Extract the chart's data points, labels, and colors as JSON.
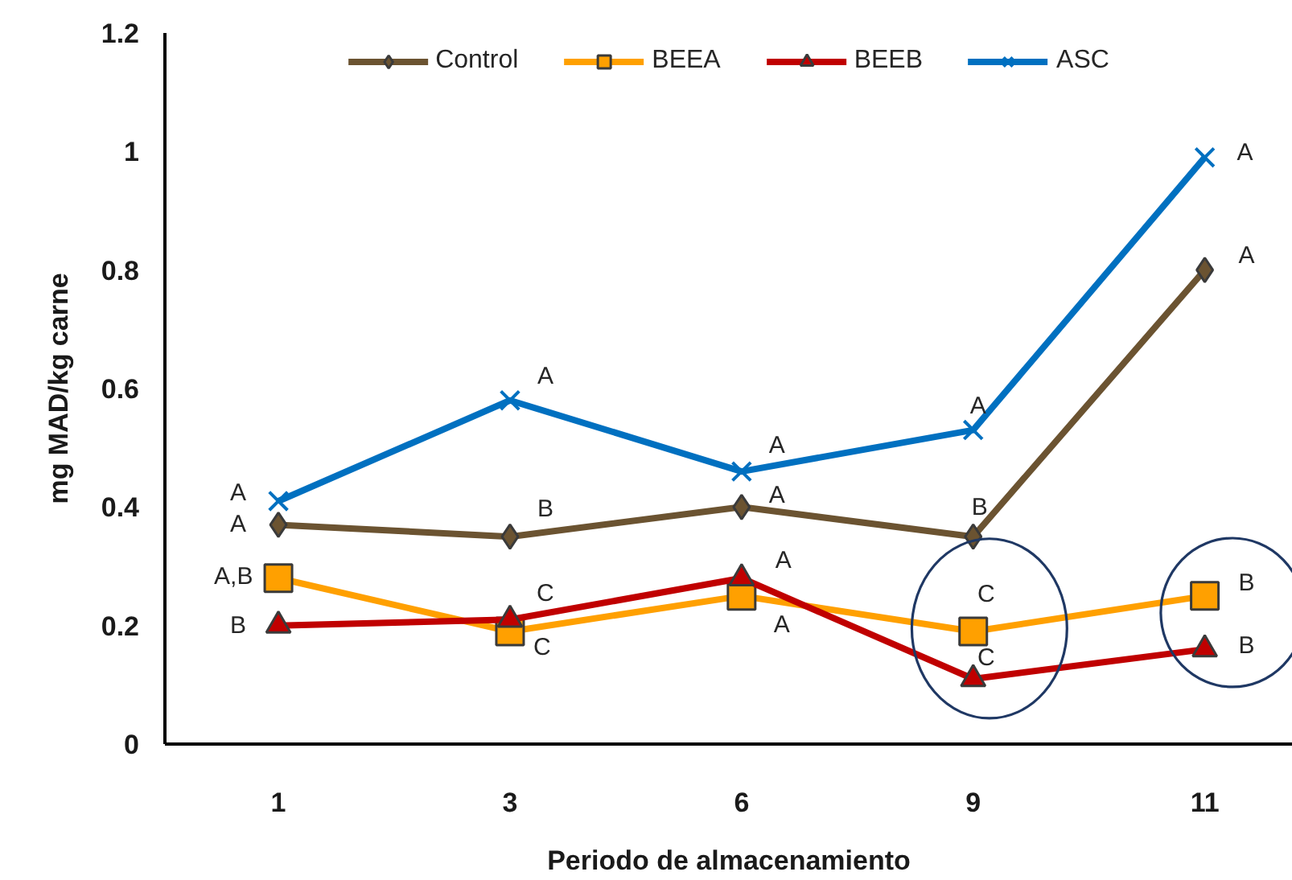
{
  "chart_data": {
    "type": "line",
    "xlabel": "Periodo de almacenamiento",
    "ylabel": "mg MAD/kg carne",
    "categories": [
      "1",
      "3",
      "6",
      "9",
      "11"
    ],
    "ylim": [
      0,
      1.2
    ],
    "yticks": [
      0,
      0.2,
      0.4,
      0.6,
      0.8,
      1,
      1.2
    ],
    "grid": false,
    "legend": "top",
    "line_style": "solid",
    "series": [
      {
        "name": "Control",
        "color": "#6b5331",
        "marker": "diamond",
        "values": [
          0.37,
          0.35,
          0.4,
          0.35,
          0.8
        ]
      },
      {
        "name": "BEEA",
        "color": "#ffa000",
        "marker": "square",
        "values": [
          0.28,
          0.19,
          0.25,
          0.19,
          0.25
        ]
      },
      {
        "name": "BEEB",
        "color": "#c00000",
        "marker": "triangle",
        "values": [
          0.2,
          0.21,
          0.28,
          0.11,
          0.16
        ]
      },
      {
        "name": "ASC",
        "color": "#0070c0",
        "marker": "cross",
        "values": [
          0.41,
          0.58,
          0.46,
          0.53,
          0.99
        ]
      }
    ],
    "annotations": [
      {
        "text": "A",
        "x": "1",
        "y": 0.37
      },
      {
        "text": "B",
        "x": "3",
        "y": 0.35
      },
      {
        "text": "A",
        "x": "6",
        "y": 0.4
      },
      {
        "text": "B",
        "x": "9",
        "y": 0.35
      },
      {
        "text": "A",
        "x": "11",
        "y": 0.8
      },
      {
        "text": "A,B",
        "x": "1",
        "y": 0.28
      },
      {
        "text": "C",
        "x": "3",
        "y": 0.19
      },
      {
        "text": "A",
        "x": "6",
        "y": 0.25
      },
      {
        "text": "C",
        "x": "9",
        "y": 0.19
      },
      {
        "text": "B",
        "x": "11",
        "y": 0.25
      },
      {
        "text": "B",
        "x": "1",
        "y": 0.2
      },
      {
        "text": "C",
        "x": "3",
        "y": 0.21
      },
      {
        "text": "A",
        "x": "6",
        "y": 0.28
      },
      {
        "text": "C",
        "x": "9",
        "y": 0.11
      },
      {
        "text": "B",
        "x": "11",
        "y": 0.16
      },
      {
        "text": "A",
        "x": "1",
        "y": 0.41
      },
      {
        "text": "A",
        "x": "3",
        "y": 0.58
      },
      {
        "text": "A",
        "x": "6",
        "y": 0.46
      },
      {
        "text": "A",
        "x": "9",
        "y": 0.53
      },
      {
        "text": "A",
        "x": "11",
        "y": 0.99
      }
    ]
  }
}
